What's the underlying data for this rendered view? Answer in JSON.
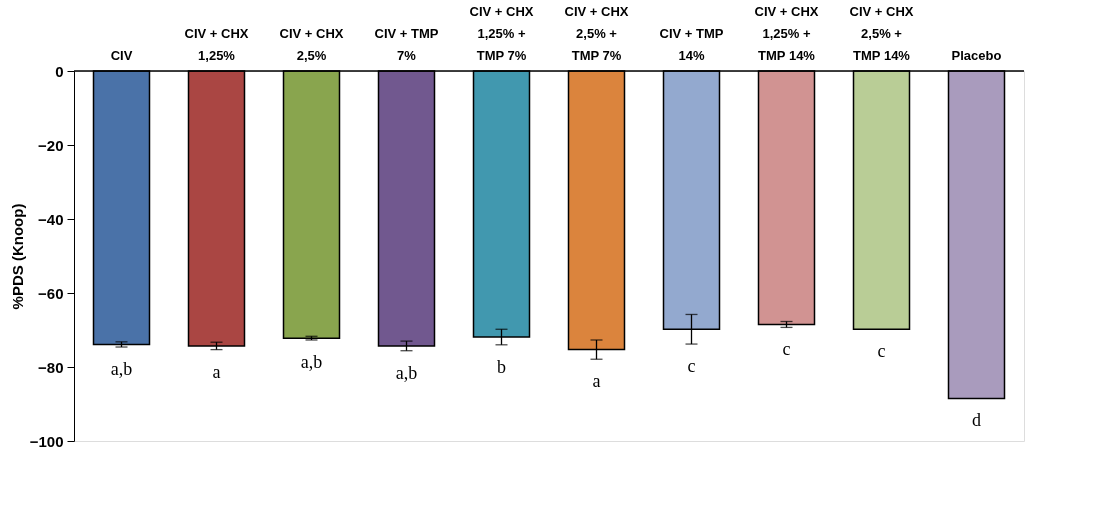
{
  "chart_data": {
    "type": "bar",
    "ylabel": "%PDS (Knoop)",
    "categories": [
      "CIV",
      "CIV + CHX\n1,25%",
      "CIV + CHX\n2,5%",
      "CIV + TMP\n7%",
      "CIV + CHX\n1,25% +\nTMP 7%",
      "CIV + CHX\n2,5% +\nTMP 7%",
      "CIV + TMP\n14%",
      "CIV + CHX\n1,25% +\nTMP 14%",
      "CIV + CHX\n2,5% +\nTMP 14%",
      "Placebo"
    ],
    "values": [
      -73.9,
      -74.3,
      -72.2,
      -74.3,
      -71.9,
      -75.3,
      -69.8,
      -68.5,
      -69.8,
      -88.5
    ],
    "errors": [
      0.7,
      1.0,
      0.5,
      1.3,
      2.1,
      2.6,
      4.0,
      0.8,
      null,
      null
    ],
    "colors": [
      "#4a72a8",
      "#aa4643",
      "#89a54e",
      "#71588f",
      "#4198af",
      "#db843d",
      "#93a9cf",
      "#d19392",
      "#b9cd96",
      "#a99bbd"
    ],
    "ylim": [
      -100,
      0
    ],
    "yticks": [
      -100,
      -80,
      -60,
      -40,
      -20,
      0
    ],
    "grid": false,
    "legend": false,
    "annotations": [
      "a,b",
      "a",
      "a,b",
      "a,b",
      "b",
      "a",
      "c",
      "c",
      "c",
      "d"
    ]
  }
}
